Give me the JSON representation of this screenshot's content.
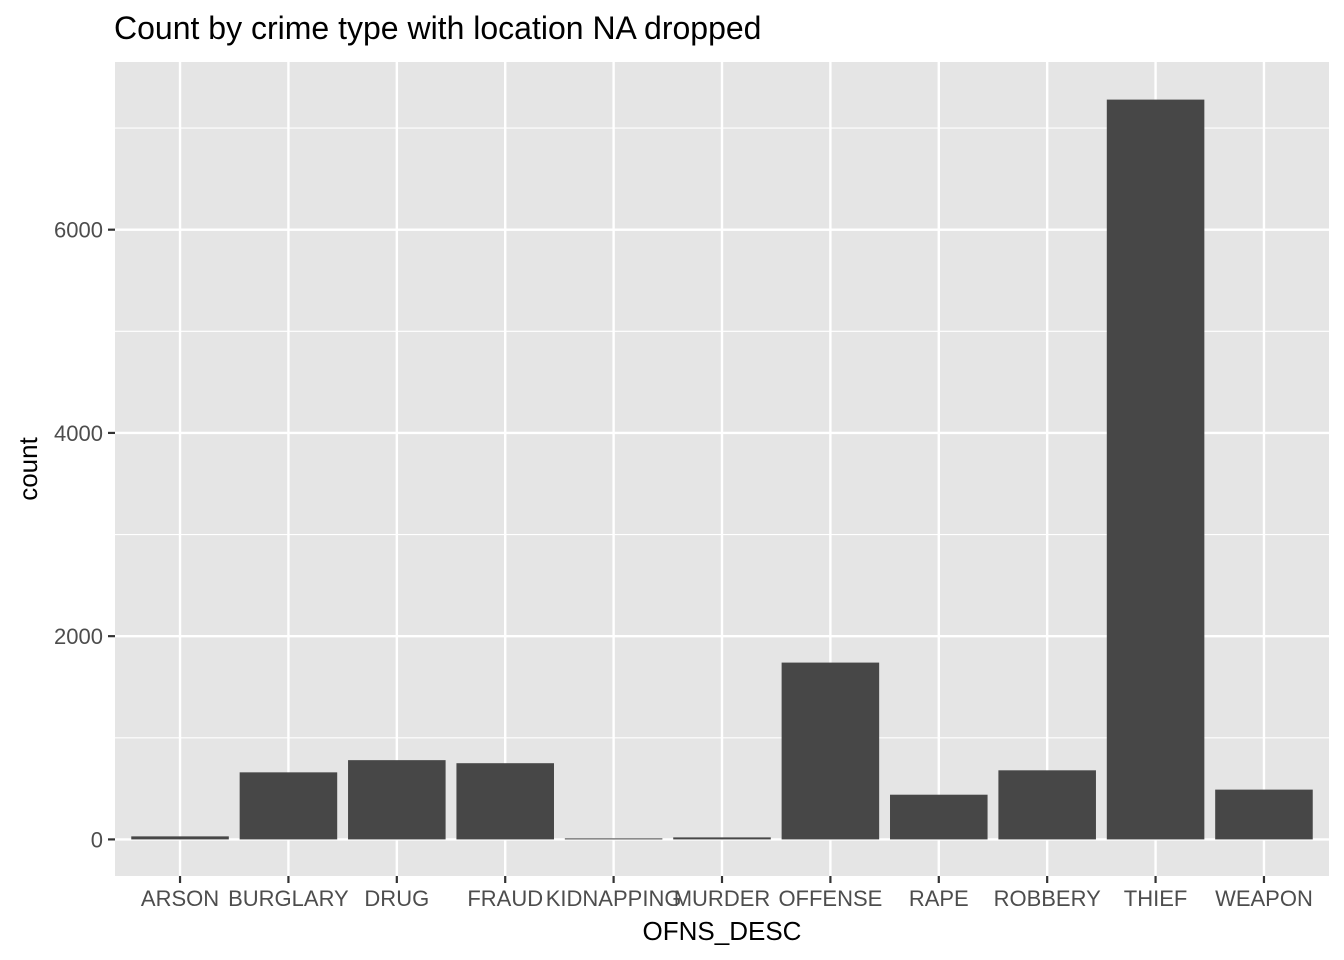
{
  "chart_data": {
    "type": "bar",
    "title": "Count by crime type with location NA dropped",
    "xlabel": "OFNS_DESC",
    "ylabel": "count",
    "categories": [
      "ARSON",
      "BURGLARY",
      "DRUG",
      "FRAUD",
      "KIDNAPPING",
      "MURDER",
      "OFFENSE",
      "RAPE",
      "ROBBERY",
      "THIEF",
      "WEAPON"
    ],
    "values": [
      30,
      660,
      780,
      750,
      10,
      20,
      1740,
      440,
      680,
      7280,
      490
    ],
    "ylim": [
      -360,
      7650
    ],
    "yticks": [
      0,
      2000,
      4000,
      6000
    ],
    "ytick_labels": [
      "0",
      "2000",
      "4000",
      "6000"
    ],
    "grid": true,
    "legend": "none",
    "colors": {
      "bar": "#474747",
      "panel": "#e5e5e5",
      "grid": "#ffffff",
      "tick": "#333333",
      "tick_text": "#4d4d4d"
    }
  }
}
